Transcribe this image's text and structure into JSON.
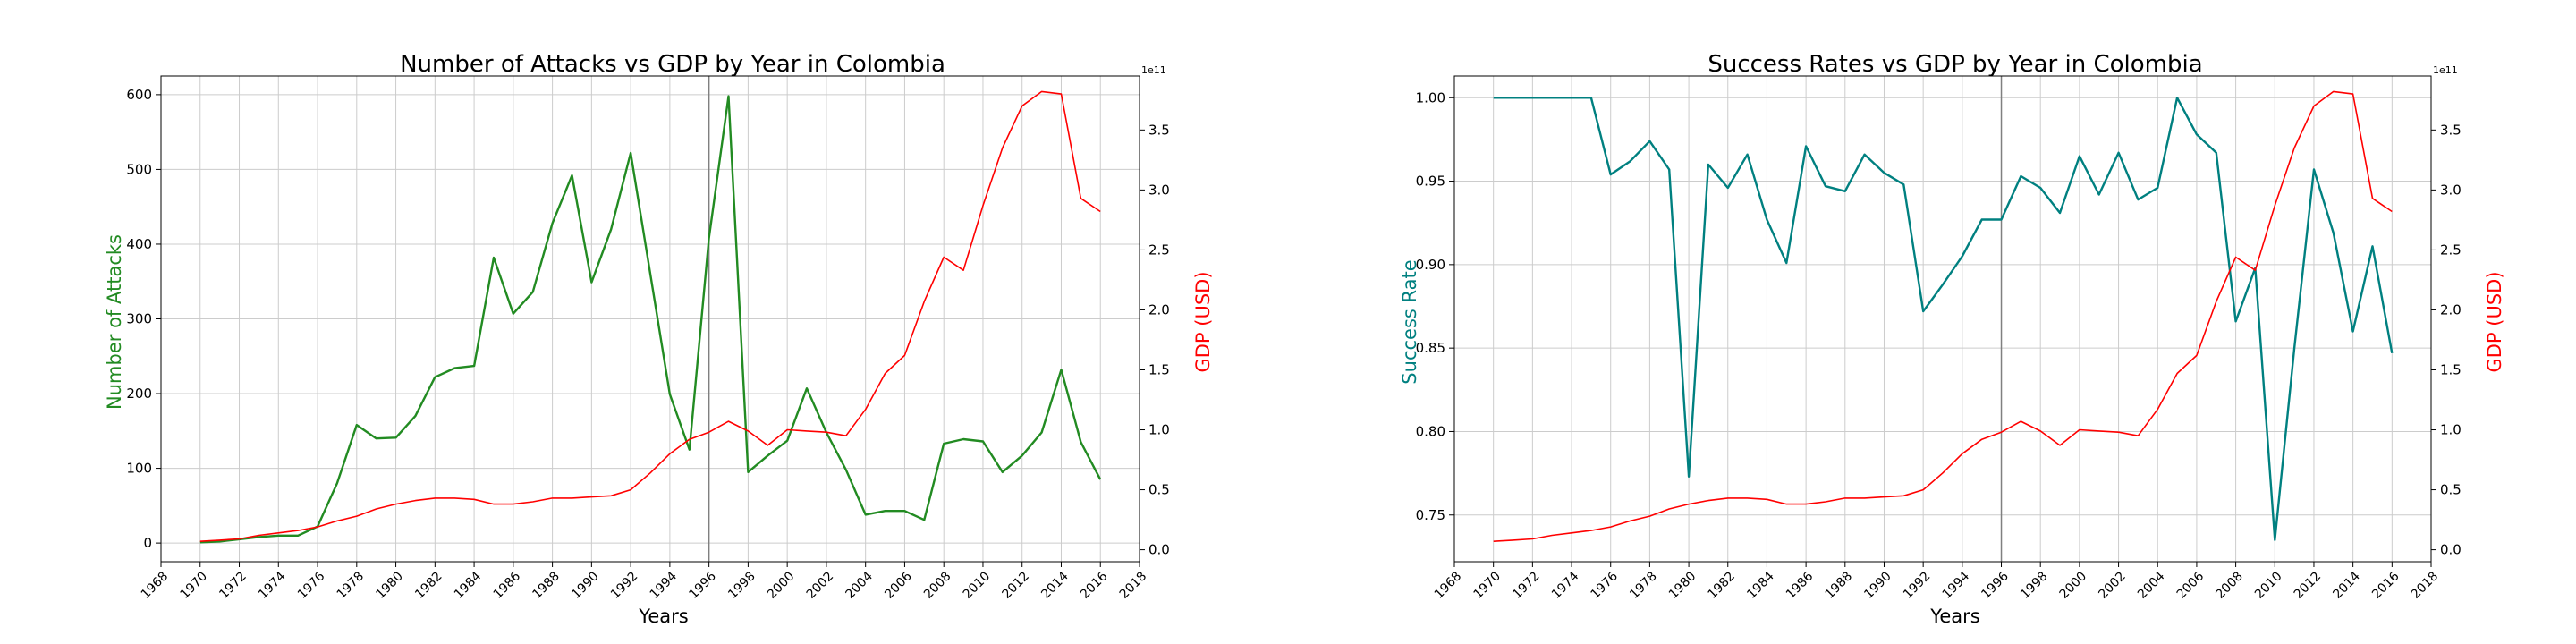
{
  "colors": {
    "green": "#228B22",
    "teal": "#008080",
    "red": "#FF0000",
    "grid": "#cccccc",
    "axis": "#000000",
    "vline": "#808080"
  },
  "chart_data": [
    {
      "type": "line",
      "title": "Number of Attacks vs GDP by Year in Colombia",
      "xlabel": "Years",
      "ylabel": "Number of Attacks",
      "y2label": "GDP (USD)",
      "y2_offset_text": "1e11",
      "xlim": [
        1968,
        2018
      ],
      "ylim": [
        -25,
        625
      ],
      "y2lim": [
        -0.1,
        3.95
      ],
      "x_ticks": [
        1968,
        1970,
        1972,
        1974,
        1976,
        1978,
        1980,
        1982,
        1984,
        1986,
        1988,
        1990,
        1992,
        1994,
        1996,
        1998,
        2000,
        2002,
        2004,
        2006,
        2008,
        2010,
        2012,
        2014,
        2016,
        2018
      ],
      "y_ticks": [
        0,
        100,
        200,
        300,
        400,
        500,
        600
      ],
      "y2_ticks": [
        0.0,
        0.5,
        1.0,
        1.5,
        2.0,
        2.5,
        3.0,
        3.5
      ],
      "vline_x": 1996,
      "grid": true,
      "series": [
        {
          "name": "Number of Attacks",
          "axis": "left",
          "color": "#228B22",
          "x": [
            1970,
            1971,
            1972,
            1973,
            1974,
            1975,
            1976,
            1977,
            1978,
            1979,
            1980,
            1981,
            1982,
            1983,
            1984,
            1985,
            1986,
            1987,
            1988,
            1989,
            1990,
            1991,
            1992,
            1994,
            1995,
            1996,
            1997,
            1998,
            1999,
            2000,
            2001,
            2002,
            2003,
            2004,
            2005,
            2006,
            2007,
            2008,
            2009,
            2010,
            2011,
            2012,
            2013,
            2014,
            2015,
            2016
          ],
          "values": [
            1,
            2,
            5,
            8,
            10,
            10,
            22,
            80,
            158,
            140,
            141,
            170,
            222,
            234,
            237,
            382,
            307,
            336,
            428,
            492,
            349,
            420,
            522,
            199,
            125,
            408,
            598,
            95,
            117,
            137,
            207,
            148,
            98,
            38,
            43,
            43,
            31,
            133,
            139,
            136,
            95,
            117,
            148,
            232,
            135,
            85
          ]
        },
        {
          "name": "GDP (USD)",
          "axis": "right",
          "color": "#FF0000",
          "x": [
            1970,
            1971,
            1972,
            1973,
            1974,
            1975,
            1976,
            1977,
            1978,
            1979,
            1980,
            1981,
            1982,
            1983,
            1984,
            1985,
            1986,
            1987,
            1988,
            1989,
            1990,
            1991,
            1992,
            1993,
            1994,
            1995,
            1996,
            1997,
            1998,
            1999,
            2000,
            2001,
            2002,
            2003,
            2004,
            2005,
            2006,
            2007,
            2008,
            2009,
            2010,
            2011,
            2012,
            2013,
            2014,
            2015,
            2016
          ],
          "values": [
            0.07,
            0.08,
            0.09,
            0.12,
            0.14,
            0.16,
            0.19,
            0.24,
            0.28,
            0.34,
            0.38,
            0.41,
            0.43,
            0.43,
            0.42,
            0.38,
            0.38,
            0.4,
            0.43,
            0.43,
            0.44,
            0.45,
            0.5,
            0.64,
            0.8,
            0.92,
            0.98,
            1.07,
            0.99,
            0.87,
            1.0,
            0.99,
            0.98,
            0.95,
            1.17,
            1.47,
            1.62,
            2.07,
            2.44,
            2.33,
            2.87,
            3.35,
            3.7,
            3.82,
            3.8,
            2.93,
            2.82
          ]
        }
      ]
    },
    {
      "type": "line",
      "title": "Success Rates vs GDP by Year in Colombia",
      "xlabel": "Years",
      "ylabel": "Success Rate",
      "y2label": "GDP (USD)",
      "y2_offset_text": "1e11",
      "xlim": [
        1968,
        2018
      ],
      "ylim": [
        0.722,
        1.013
      ],
      "y2lim": [
        -0.1,
        3.95
      ],
      "x_ticks": [
        1968,
        1970,
        1972,
        1974,
        1976,
        1978,
        1980,
        1982,
        1984,
        1986,
        1988,
        1990,
        1992,
        1994,
        1996,
        1998,
        2000,
        2002,
        2004,
        2006,
        2008,
        2010,
        2012,
        2014,
        2016,
        2018
      ],
      "y_ticks": [
        0.75,
        0.8,
        0.85,
        0.9,
        0.95,
        1.0
      ],
      "y_tick_labels": [
        "0.75",
        "0.80",
        "0.85",
        "0.90",
        "0.95",
        "1.00"
      ],
      "y2_ticks": [
        0.0,
        0.5,
        1.0,
        1.5,
        2.0,
        2.5,
        3.0,
        3.5
      ],
      "vline_x": 1996,
      "grid": true,
      "series": [
        {
          "name": "Success Rate",
          "axis": "left",
          "color": "#008080",
          "x": [
            1970,
            1971,
            1972,
            1973,
            1974,
            1975,
            1976,
            1977,
            1978,
            1979,
            1980,
            1981,
            1982,
            1983,
            1984,
            1985,
            1986,
            1987,
            1988,
            1989,
            1990,
            1991,
            1992,
            1993,
            1994,
            1995,
            1996,
            1997,
            1998,
            1999,
            2000,
            2001,
            2002,
            2003,
            2004,
            2005,
            2006,
            2007,
            2008,
            2009,
            2010,
            2011,
            2012,
            2013,
            2014,
            2015,
            2016
          ],
          "values": [
            1.0,
            1.0,
            1.0,
            1.0,
            1.0,
            1.0,
            0.954,
            0.962,
            0.974,
            0.957,
            0.773,
            0.96,
            0.946,
            0.966,
            0.927,
            0.901,
            0.971,
            0.947,
            0.944,
            0.966,
            0.955,
            0.948,
            0.872,
            0.888,
            0.905,
            0.927,
            0.927,
            0.953,
            0.946,
            0.931,
            0.965,
            0.942,
            0.967,
            0.939,
            0.946,
            1.0,
            0.978,
            0.967,
            0.866,
            0.898,
            0.735,
            0.85,
            0.957,
            0.919,
            0.86,
            0.911,
            0.847
          ]
        },
        {
          "name": "GDP (USD)",
          "axis": "right",
          "color": "#FF0000",
          "x": [
            1970,
            1971,
            1972,
            1973,
            1974,
            1975,
            1976,
            1977,
            1978,
            1979,
            1980,
            1981,
            1982,
            1983,
            1984,
            1985,
            1986,
            1987,
            1988,
            1989,
            1990,
            1991,
            1992,
            1993,
            1994,
            1995,
            1996,
            1997,
            1998,
            1999,
            2000,
            2001,
            2002,
            2003,
            2004,
            2005,
            2006,
            2007,
            2008,
            2009,
            2010,
            2011,
            2012,
            2013,
            2014,
            2015,
            2016
          ],
          "values": [
            0.07,
            0.08,
            0.09,
            0.12,
            0.14,
            0.16,
            0.19,
            0.24,
            0.28,
            0.34,
            0.38,
            0.41,
            0.43,
            0.43,
            0.42,
            0.38,
            0.38,
            0.4,
            0.43,
            0.43,
            0.44,
            0.45,
            0.5,
            0.64,
            0.8,
            0.92,
            0.98,
            1.07,
            0.99,
            0.87,
            1.0,
            0.99,
            0.98,
            0.95,
            1.17,
            1.47,
            1.62,
            2.07,
            2.44,
            2.33,
            2.87,
            3.35,
            3.7,
            3.82,
            3.8,
            2.93,
            2.82
          ]
        }
      ]
    }
  ]
}
